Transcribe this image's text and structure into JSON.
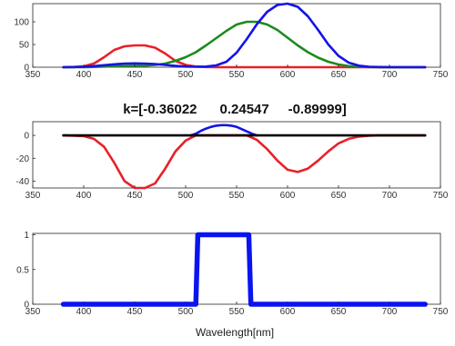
{
  "colors": {
    "red": "#e8202a",
    "green": "#1e8a1e",
    "blue": "#1414e6",
    "black": "#000000",
    "thick_blue": "#0a14f0"
  },
  "chart_data": [
    {
      "type": "line",
      "xlim": [
        350,
        750
      ],
      "ylim": [
        0,
        140
      ],
      "xticks": [
        "350",
        "400",
        "450",
        "500",
        "550",
        "600",
        "650",
        "700",
        "750"
      ],
      "yticks": [
        "0",
        "50",
        "100"
      ],
      "grid": false,
      "series": [
        {
          "color": "red",
          "x": [
            380,
            390,
            400,
            410,
            420,
            430,
            440,
            450,
            460,
            470,
            480,
            490,
            500,
            510,
            520,
            530,
            540,
            550,
            560,
            570,
            580,
            590,
            600,
            610,
            620,
            630,
            640,
            650,
            660,
            670,
            680,
            690,
            700,
            710,
            720,
            730,
            735
          ],
          "y": [
            0,
            0.4,
            2,
            8,
            22,
            38,
            46,
            48,
            48,
            43,
            30,
            14,
            5,
            1.5,
            0.5,
            0,
            0,
            0,
            0,
            0,
            0,
            0,
            0,
            0,
            0,
            0,
            0,
            0,
            0,
            0,
            0,
            0,
            0,
            0,
            0,
            0,
            0
          ]
        },
        {
          "color": "green",
          "x": [
            380,
            390,
            400,
            410,
            420,
            430,
            440,
            450,
            460,
            470,
            480,
            490,
            500,
            510,
            520,
            530,
            540,
            550,
            560,
            570,
            580,
            590,
            600,
            610,
            620,
            630,
            640,
            650,
            660,
            670,
            680,
            690,
            700,
            710,
            720,
            730,
            735
          ],
          "y": [
            0,
            0,
            0.2,
            0.6,
            1.5,
            2.5,
            3,
            3,
            3.5,
            5,
            8,
            14,
            22,
            33,
            48,
            64,
            80,
            94,
            100,
            100,
            94,
            82,
            65,
            48,
            33,
            21,
            12,
            6,
            2.5,
            1,
            0.4,
            0,
            0,
            0,
            0,
            0,
            0
          ]
        },
        {
          "color": "blue",
          "x": [
            380,
            390,
            400,
            410,
            420,
            430,
            440,
            450,
            460,
            470,
            480,
            490,
            500,
            510,
            520,
            530,
            540,
            550,
            560,
            570,
            580,
            590,
            600,
            610,
            620,
            630,
            640,
            650,
            660,
            670,
            680,
            690,
            700,
            710,
            720,
            730,
            735
          ],
          "y": [
            0,
            0.3,
            1,
            2.5,
            4.5,
            6.5,
            8,
            8.5,
            8,
            7,
            5,
            3,
            1.5,
            1,
            1.5,
            4,
            12,
            32,
            62,
            95,
            122,
            137,
            140,
            133,
            112,
            82,
            50,
            25,
            10,
            3.5,
            1,
            0.3,
            0,
            0,
            0,
            0,
            0
          ]
        }
      ]
    },
    {
      "type": "line",
      "title": "k=[-0.36022      0.24547     -0.89999]",
      "xlim": [
        350,
        750
      ],
      "ylim": [
        -46,
        12
      ],
      "xticks": [
        "350",
        "400",
        "450",
        "500",
        "550",
        "600",
        "650",
        "700",
        "750"
      ],
      "yticks": [
        "0",
        "-20",
        "-40"
      ],
      "grid": false,
      "series": [
        {
          "color": "red",
          "x": [
            380,
            390,
            400,
            410,
            420,
            430,
            440,
            450,
            460,
            470,
            480,
            490,
            500,
            510,
            520,
            530,
            540,
            550,
            560,
            570,
            580,
            590,
            600,
            610,
            620,
            630,
            640,
            650,
            660,
            670,
            680,
            690,
            700,
            710,
            720,
            730,
            735
          ],
          "y": [
            0,
            -0.2,
            -0.6,
            -3,
            -10,
            -24,
            -40,
            -46,
            -46,
            -42,
            -29,
            -14,
            -4.5,
            0,
            0,
            0,
            0,
            0,
            0,
            -4,
            -12,
            -22,
            -30,
            -32,
            -29,
            -22,
            -14,
            -7,
            -3,
            -1,
            -0.3,
            0,
            0,
            0,
            0,
            0,
            0
          ]
        },
        {
          "color": "blue",
          "x": [
            505,
            510,
            515,
            520,
            525,
            530,
            535,
            540,
            545,
            550,
            555,
            560,
            565,
            570
          ],
          "y": [
            0,
            1.5,
            4,
            6,
            7.5,
            8.5,
            9,
            9,
            8.5,
            7.5,
            5.5,
            3.5,
            1.5,
            0
          ]
        },
        {
          "color": "black",
          "x": [
            380,
            735
          ],
          "y": [
            0,
            0
          ]
        }
      ]
    },
    {
      "type": "line",
      "xlim": [
        350,
        750
      ],
      "ylim": [
        0,
        1.02
      ],
      "xticks": [
        "350",
        "400",
        "450",
        "500",
        "550",
        "600",
        "650",
        "700",
        "750"
      ],
      "yticks": [
        "0",
        "0.5",
        "1"
      ],
      "xlabel": "Wavelength[nm]",
      "grid": false,
      "series": [
        {
          "color": "thick_blue",
          "x": [
            380,
            510,
            512,
            562,
            564,
            735
          ],
          "y": [
            0,
            0,
            1,
            1,
            0,
            0
          ]
        }
      ]
    }
  ]
}
